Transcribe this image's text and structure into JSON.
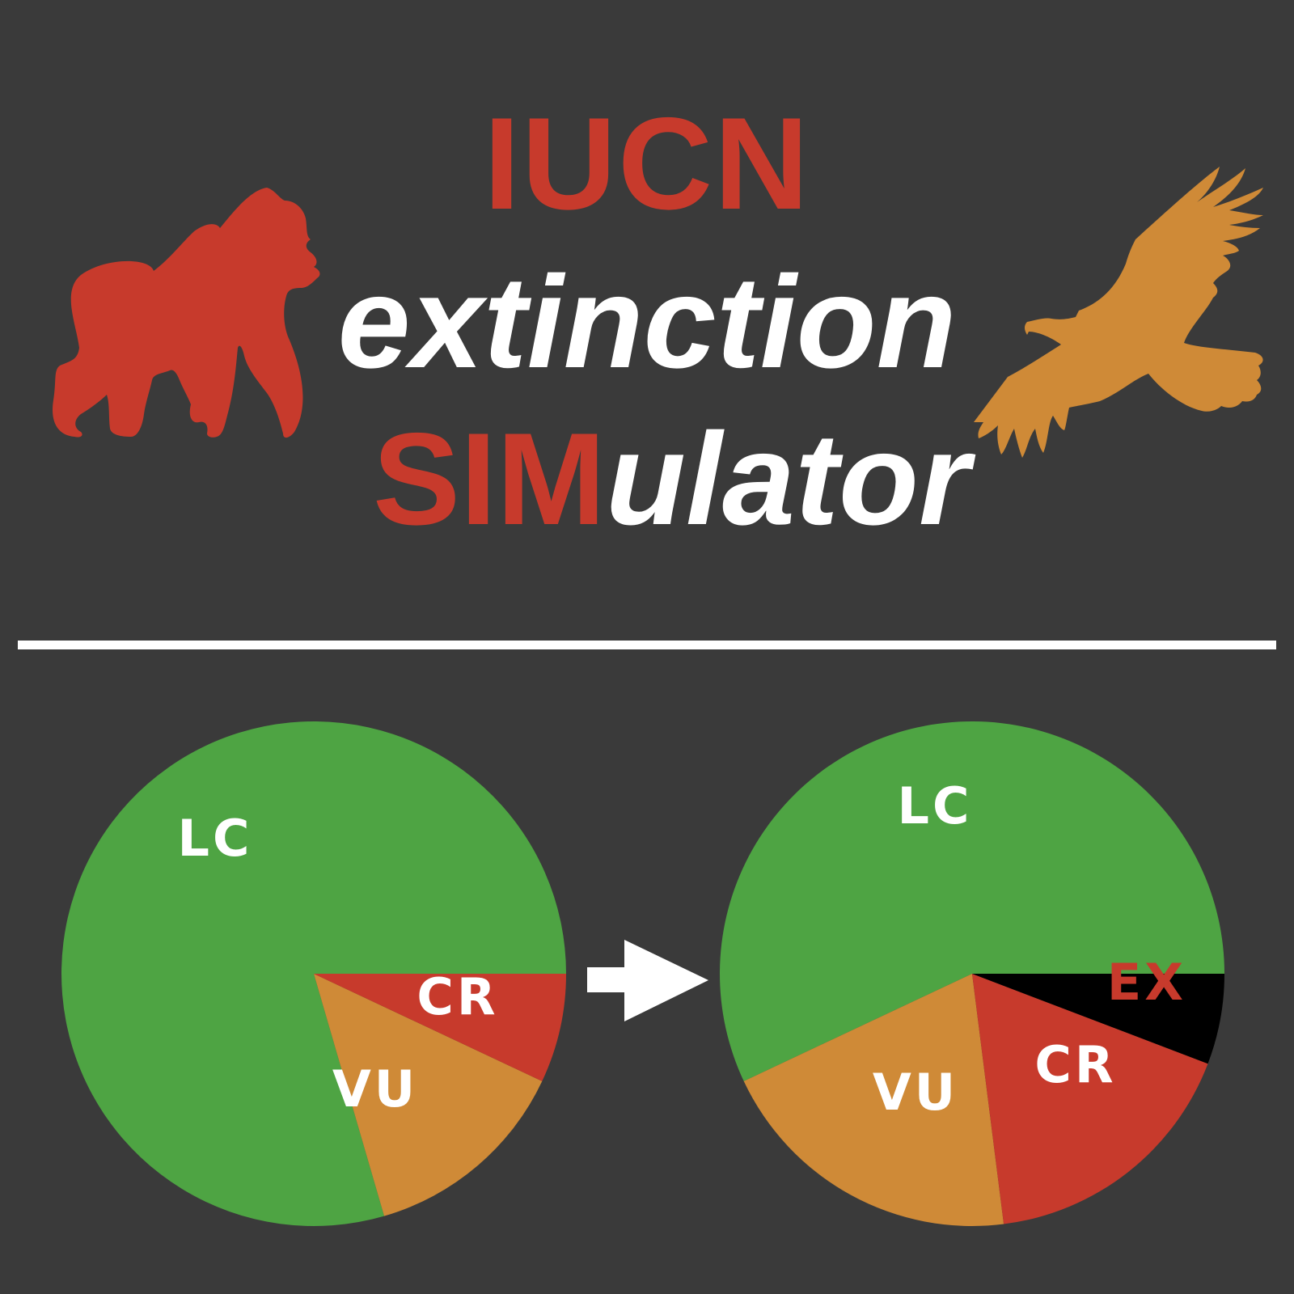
{
  "title": {
    "line1": "IUCN",
    "line2": "extinction",
    "line3_highlight": "SIM",
    "line3_rest": "ulator"
  },
  "icons": {
    "left": "gorilla-icon",
    "right": "vulture-icon",
    "arrow": "arrow-right-icon"
  },
  "colors": {
    "background": "#3a3a3a",
    "red": "#c73a2c",
    "orange": "#cf8a37",
    "green": "#4ea443",
    "black": "#000000",
    "white": "#ffffff"
  },
  "chart_data": [
    {
      "type": "pie",
      "slices": [
        {
          "label": "LC",
          "value": 79.5,
          "color": "#4ea443",
          "label_color": "#ffffff"
        },
        {
          "label": "VU",
          "value": 13.5,
          "color": "#cf8a37",
          "label_color": "#ffffff"
        },
        {
          "label": "CR",
          "value": 7.0,
          "color": "#c73a2c",
          "label_color": "#ffffff"
        }
      ]
    },
    {
      "type": "pie",
      "slices": [
        {
          "label": "LC",
          "value": 57.0,
          "color": "#4ea443",
          "label_color": "#ffffff"
        },
        {
          "label": "VU",
          "value": 20.0,
          "color": "#cf8a37",
          "label_color": "#ffffff"
        },
        {
          "label": "CR",
          "value": 17.2,
          "color": "#c73a2c",
          "label_color": "#ffffff"
        },
        {
          "label": "EX",
          "value": 5.8,
          "color": "#000000",
          "label_color": "#c73a2c"
        }
      ]
    }
  ]
}
